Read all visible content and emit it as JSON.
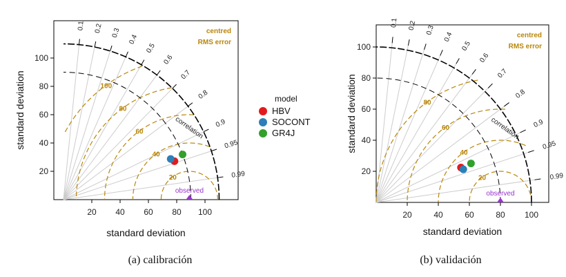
{
  "figure": {
    "legend": {
      "title": "model",
      "entries": [
        {
          "name": "HBV",
          "color": "#e31a1c"
        },
        {
          "name": "SOCONT",
          "color": "#2c7fb8"
        },
        {
          "name": "GR4J",
          "color": "#33a02c"
        }
      ]
    },
    "colors": {
      "rms": "#b8860b",
      "observed": "#9933cc",
      "grid": "#cccccc",
      "axis": "#000000"
    }
  },
  "chart_data": [
    {
      "type": "scatter",
      "subtype": "taylor-diagram",
      "caption": "(a) calibración",
      "xlabel": "standard deviation",
      "ylabel": "standard deviation",
      "correlation_label": "correlation",
      "rms_label_line1": "centred",
      "rms_label_line2": "RMS error",
      "observed_label": "observed",
      "observed_sd": 89,
      "axis_max": 110,
      "x_ticks": [
        20,
        40,
        60,
        80,
        100
      ],
      "y_ticks": [
        20,
        40,
        60,
        80,
        100
      ],
      "sd_arcs": [
        90,
        110
      ],
      "correlation_ticks": [
        {
          "value": 0.1,
          "label": "0.1"
        },
        {
          "value": 0.2,
          "label": "0.2"
        },
        {
          "value": 0.3,
          "label": "0.3"
        },
        {
          "value": 0.4,
          "label": "0.4"
        },
        {
          "value": 0.5,
          "label": "0.5"
        },
        {
          "value": 0.6,
          "label": "0.6"
        },
        {
          "value": 0.7,
          "label": "0.7"
        },
        {
          "value": 0.8,
          "label": "0.8"
        },
        {
          "value": 0.9,
          "label": "0.9"
        },
        {
          "value": 0.95,
          "label": "0.95"
        },
        {
          "value": 0.99,
          "label": "0.99"
        }
      ],
      "rms_contours": [
        {
          "value": 20,
          "label": "20"
        },
        {
          "value": 40,
          "label": "40"
        },
        {
          "value": 60,
          "label": "60"
        },
        {
          "value": 80,
          "label": "80"
        },
        {
          "value": 100,
          "label": "100"
        }
      ],
      "points": [
        {
          "model": "HBV",
          "sd": 83,
          "correlation": 0.945
        },
        {
          "model": "SOCONT",
          "sd": 81,
          "correlation": 0.935
        },
        {
          "model": "GR4J",
          "sd": 90,
          "correlation": 0.935
        }
      ]
    },
    {
      "type": "scatter",
      "subtype": "taylor-diagram",
      "caption": "(b) validación",
      "xlabel": "standard deviation",
      "ylabel": "standard deviation",
      "correlation_label": "correlation",
      "rms_label_line1": "centred",
      "rms_label_line2": "RMS error",
      "observed_label": "observed",
      "observed_sd": 80,
      "axis_max": 103,
      "x_ticks": [
        20,
        40,
        60,
        80,
        100
      ],
      "y_ticks": [
        20,
        40,
        60,
        80,
        100
      ],
      "sd_arcs": [
        80,
        100
      ],
      "correlation_ticks": [
        {
          "value": 0.1,
          "label": "0.1"
        },
        {
          "value": 0.2,
          "label": "0.2"
        },
        {
          "value": 0.3,
          "label": "0.3"
        },
        {
          "value": 0.4,
          "label": "0.4"
        },
        {
          "value": 0.5,
          "label": "0.5"
        },
        {
          "value": 0.6,
          "label": "0.6"
        },
        {
          "value": 0.7,
          "label": "0.7"
        },
        {
          "value": 0.8,
          "label": "0.8"
        },
        {
          "value": 0.9,
          "label": "0.9"
        },
        {
          "value": 0.95,
          "label": "0.95"
        },
        {
          "value": 0.99,
          "label": "0.99"
        }
      ],
      "rms_contours": [
        {
          "value": 20,
          "label": "20"
        },
        {
          "value": 40,
          "label": "40"
        },
        {
          "value": 60,
          "label": "60"
        },
        {
          "value": 80,
          "label": "80"
        }
      ],
      "points": [
        {
          "model": "HBV",
          "sd": 59,
          "correlation": 0.925
        },
        {
          "model": "SOCONT",
          "sd": 60,
          "correlation": 0.935
        },
        {
          "model": "GR4J",
          "sd": 66,
          "correlation": 0.925
        }
      ]
    }
  ]
}
